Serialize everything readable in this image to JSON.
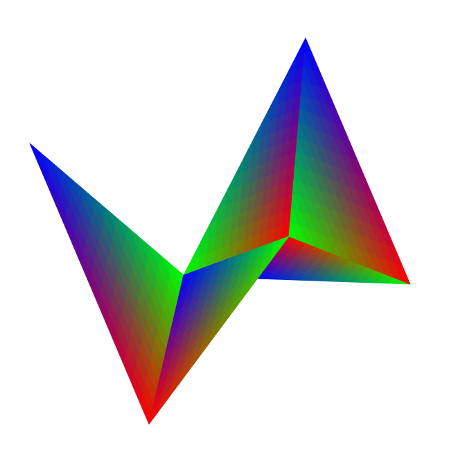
{
  "scene": {
    "background_color": "#ffffff",
    "vertex_colors": {
      "red": "#ff0000",
      "green": "#00ff00",
      "blue": "#0000ff"
    },
    "triangles": [
      {
        "name": "left-wing-triangle",
        "vertex_colors": [
          "blue",
          "green",
          "red"
        ]
      },
      {
        "name": "left-inner-triangle",
        "vertex_colors": [
          "blue",
          "red",
          "green"
        ]
      },
      {
        "name": "center-fold-triangle",
        "vertex_colors": [
          "green",
          "red",
          "blue"
        ]
      },
      {
        "name": "back-facet-triangle",
        "vertex_colors": [
          "blue",
          "red",
          "green"
        ]
      },
      {
        "name": "right-wing-triangle",
        "vertex_colors": [
          "blue",
          "red",
          "green"
        ]
      }
    ]
  }
}
